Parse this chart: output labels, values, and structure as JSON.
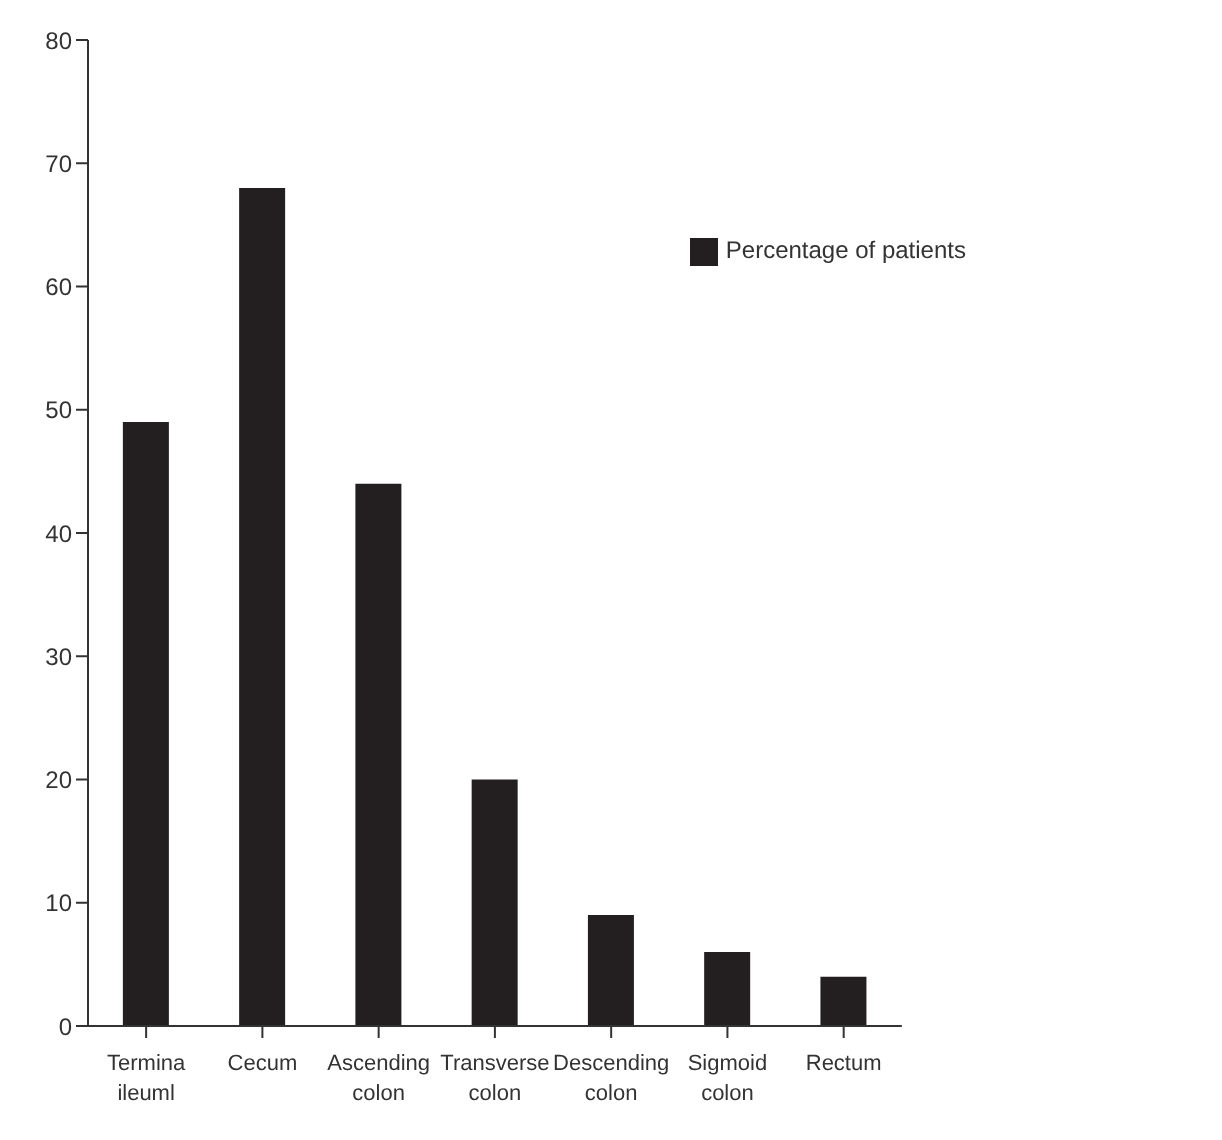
{
  "chart_data": {
    "type": "bar",
    "categories": [
      "Termina ileuml",
      "Cecum",
      "Ascending colon",
      "Transverse colon",
      "Descending colon",
      "Sigmoid colon",
      "Rectum"
    ],
    "series": [
      {
        "name": "Percentage of patients",
        "color": "#231f20",
        "values": [
          49,
          68,
          44,
          20,
          9,
          6,
          4
        ]
      }
    ],
    "ylim": [
      0,
      80
    ],
    "yticks": [
      0,
      10,
      20,
      30,
      40,
      50,
      60,
      70,
      80
    ],
    "grid": false,
    "legend": "top right"
  }
}
